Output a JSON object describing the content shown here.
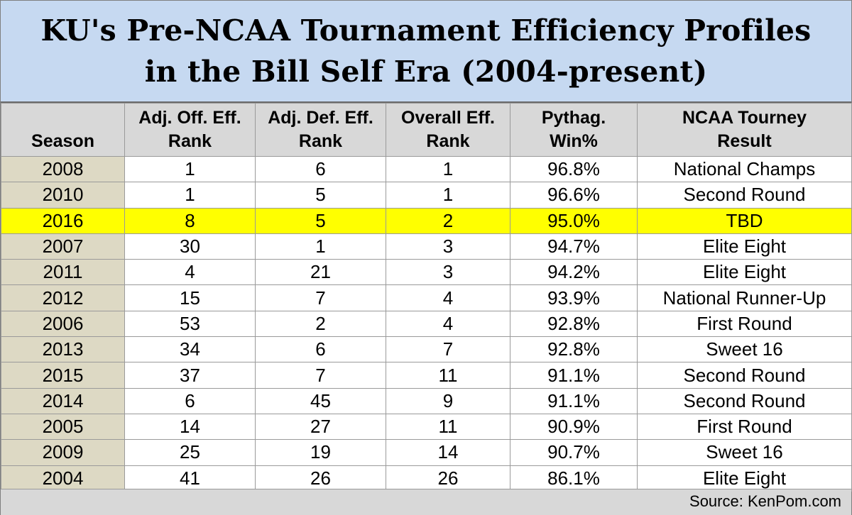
{
  "chart_data": {
    "type": "table",
    "title_lines": [
      "KU's Pre-NCAA Tournament Efficiency Profiles",
      "in the Bill Self Era (2004-present)"
    ],
    "columns": [
      {
        "key": "season",
        "line1": "",
        "line2": "Season"
      },
      {
        "key": "off",
        "line1": "Adj. Off. Eff.",
        "line2": "Rank"
      },
      {
        "key": "def",
        "line1": "Adj. Def. Eff.",
        "line2": "Rank"
      },
      {
        "key": "overall",
        "line1": "Overall Eff.",
        "line2": "Rank"
      },
      {
        "key": "pythag",
        "line1": "Pythag.",
        "line2": "Win%"
      },
      {
        "key": "result",
        "line1": "NCAA Tourney",
        "line2": "Result"
      }
    ],
    "rows": [
      {
        "season": "2008",
        "off": "1",
        "def": "6",
        "overall": "1",
        "pythag": "96.8%",
        "result": "National Champs"
      },
      {
        "season": "2010",
        "off": "1",
        "def": "5",
        "overall": "1",
        "pythag": "96.6%",
        "result": "Second Round"
      },
      {
        "season": "2016",
        "off": "8",
        "def": "5",
        "overall": "2",
        "pythag": "95.0%",
        "result": "TBD",
        "highlight": true
      },
      {
        "season": "2007",
        "off": "30",
        "def": "1",
        "overall": "3",
        "pythag": "94.7%",
        "result": "Elite Eight"
      },
      {
        "season": "2011",
        "off": "4",
        "def": "21",
        "overall": "3",
        "pythag": "94.2%",
        "result": "Elite Eight"
      },
      {
        "season": "2012",
        "off": "15",
        "def": "7",
        "overall": "4",
        "pythag": "93.9%",
        "result": "National Runner-Up"
      },
      {
        "season": "2006",
        "off": "53",
        "def": "2",
        "overall": "4",
        "pythag": "92.8%",
        "result": "First Round"
      },
      {
        "season": "2013",
        "off": "34",
        "def": "6",
        "overall": "7",
        "pythag": "92.8%",
        "result": "Sweet 16"
      },
      {
        "season": "2015",
        "off": "37",
        "def": "7",
        "overall": "11",
        "pythag": "91.1%",
        "result": "Second Round"
      },
      {
        "season": "2014",
        "off": "6",
        "def": "45",
        "overall": "9",
        "pythag": "91.1%",
        "result": "Second Round"
      },
      {
        "season": "2005",
        "off": "14",
        "def": "27",
        "overall": "11",
        "pythag": "90.9%",
        "result": "First Round"
      },
      {
        "season": "2009",
        "off": "25",
        "def": "19",
        "overall": "14",
        "pythag": "90.7%",
        "result": "Sweet 16"
      },
      {
        "season": "2004",
        "off": "41",
        "def": "26",
        "overall": "26",
        "pythag": "86.1%",
        "result": "Elite Eight"
      }
    ],
    "source": "Source: KenPom.com",
    "colors": {
      "title_background": "#c6d9f1",
      "header_background": "#d8d8d8",
      "season_column_background": "#ddd9c4",
      "highlight_row": "#ffff00"
    }
  }
}
